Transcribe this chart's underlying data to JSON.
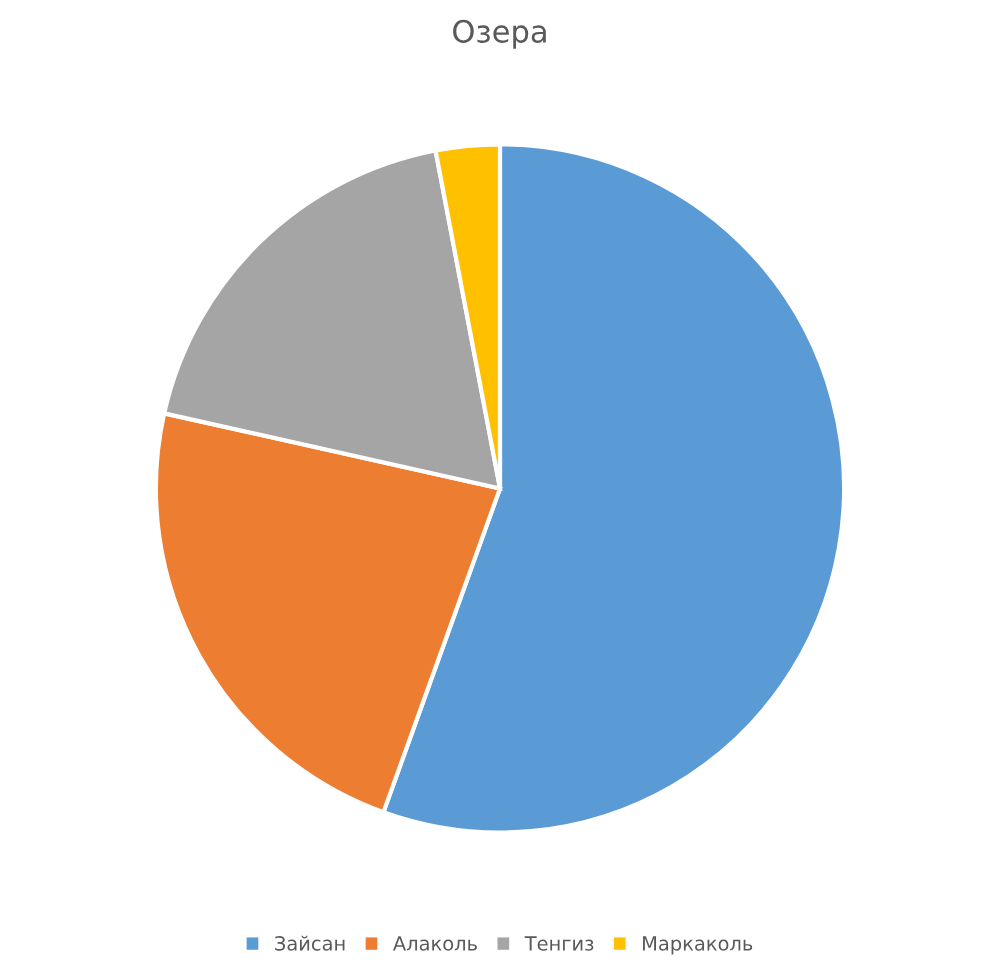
{
  "chart_data": {
    "type": "pie",
    "title": "Озера",
    "categories": [
      "Зайсан",
      "Алаколь",
      "Тенгиз",
      "Маркаколь"
    ],
    "values": [
      55.5,
      23,
      18.5,
      3
    ],
    "colors": [
      "#5b9bd5",
      "#ed7d31",
      "#a5a5a5",
      "#ffc000"
    ],
    "legend": "bottom"
  }
}
